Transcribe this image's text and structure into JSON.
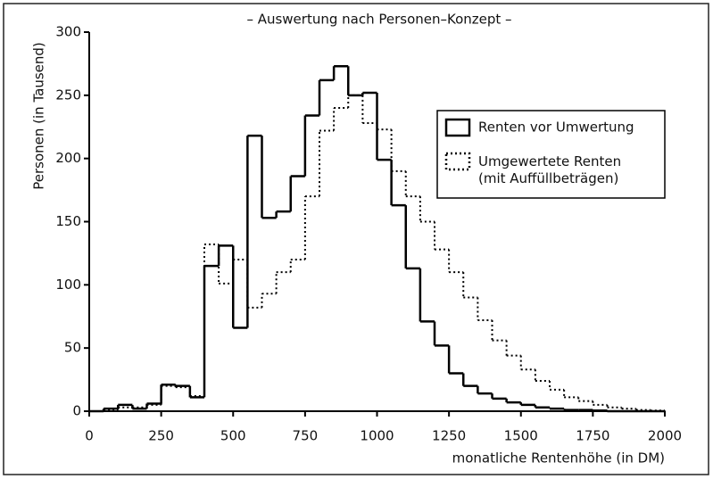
{
  "chart_data": {
    "type": "histogram",
    "title": "– Auswertung nach Personen–Konzept –",
    "x_label": "monatliche Rentenhöhe (in DM)",
    "y_label": "Personen (in Tausend)",
    "bins": [
      0,
      50,
      100,
      150,
      200,
      250,
      300,
      350,
      400,
      450,
      500,
      550,
      600,
      650,
      700,
      750,
      800,
      850,
      900,
      950,
      1000,
      1050,
      1100,
      1150,
      1200,
      1250,
      1300,
      1350,
      1400,
      1450,
      1500,
      1550,
      1600,
      1650,
      1700,
      1750,
      1800,
      1850,
      1900,
      1950,
      2000
    ],
    "series": [
      {
        "name": "Renten vor Umwertung",
        "color": "#000000",
        "style": "solid",
        "values": [
          0,
          2,
          5,
          2,
          6,
          21,
          20,
          11,
          115,
          131,
          66,
          218,
          153,
          158,
          186,
          234,
          262,
          273,
          250,
          252,
          199,
          163,
          113,
          71,
          52,
          30,
          20,
          14,
          10,
          7,
          5,
          3,
          2,
          1,
          1,
          0.5,
          0,
          0,
          0,
          0
        ]
      },
      {
        "name": "Umgewertete Renten (mit Auffüllbeträgen)",
        "color": "#000000",
        "style": "dotted",
        "values": [
          0,
          1,
          3,
          3,
          5,
          20,
          19,
          12,
          132,
          101,
          120,
          82,
          93,
          110,
          120,
          170,
          222,
          240,
          250,
          228,
          223,
          190,
          170,
          150,
          128,
          110,
          90,
          72,
          56,
          44,
          33,
          24,
          17,
          11,
          8,
          5,
          3,
          2,
          1,
          0.5
        ]
      }
    ],
    "xlim": [
      0,
      2000
    ],
    "ylim": [
      0,
      300
    ],
    "xticks": [
      0,
      250,
      500,
      750,
      1000,
      1250,
      1500,
      1750,
      2000
    ],
    "yticks": [
      0,
      50,
      100,
      150,
      200,
      250,
      300
    ],
    "legend": "upper right"
  }
}
